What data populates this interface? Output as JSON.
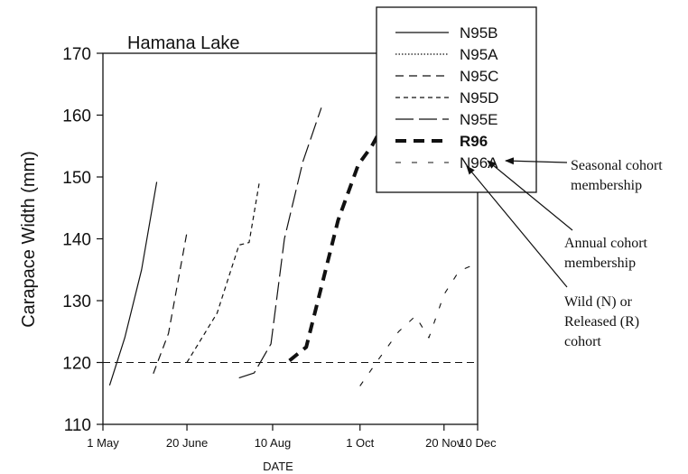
{
  "chart_data": {
    "type": "line",
    "title": "Hamana Lake",
    "xlabel": "DATE",
    "ylabel": "Carapace Width (mm)",
    "ylim": [
      110,
      170
    ],
    "yticks": [
      110,
      120,
      130,
      140,
      150,
      160,
      170
    ],
    "xlim": [
      "1995-05-01",
      "1995-12-10"
    ],
    "xticks": [
      {
        "label": "1 May",
        "date": "1995-05-01"
      },
      {
        "label": "20 June",
        "date": "1995-06-20"
      },
      {
        "label": "10 Aug",
        "date": "1995-08-10"
      },
      {
        "label": "1 Oct",
        "date": "1995-10-01"
      },
      {
        "label": "20 Nov",
        "date": "1995-11-20"
      },
      {
        "label": "10 Dec",
        "date": "1995-12-10"
      }
    ],
    "reference_line": {
      "y": 120,
      "style": "dash"
    },
    "legend_position": "top-right",
    "series": [
      {
        "name": "N95B",
        "style": "solid",
        "points": [
          [
            "1995-05-05",
            116.3
          ],
          [
            "1995-05-14",
            124
          ],
          [
            "1995-05-24",
            135
          ],
          [
            "1995-06-02",
            149.2
          ]
        ]
      },
      {
        "name": "N95A",
        "style": "dotted",
        "points": []
      },
      {
        "name": "N95C",
        "style": "dash",
        "points": [
          [
            "1995-05-31",
            118.2
          ],
          [
            "1995-06-09",
            124.7
          ],
          [
            "1995-06-20",
            141
          ]
        ]
      },
      {
        "name": "N95D",
        "style": "short-dash",
        "points": [
          [
            "1995-06-20",
            120
          ],
          [
            "1995-07-08",
            128
          ],
          [
            "1995-07-21",
            139
          ],
          [
            "1995-07-27",
            139.4
          ],
          [
            "1995-08-02",
            149
          ]
        ]
      },
      {
        "name": "N95E",
        "style": "long-dash",
        "points": [
          [
            "1995-07-21",
            117.5
          ],
          [
            "1995-07-30",
            118.3
          ],
          [
            "1995-08-09",
            123
          ],
          [
            "1995-08-17",
            140
          ],
          [
            "1995-08-28",
            152.5
          ],
          [
            "1995-09-08",
            161.2
          ]
        ]
      },
      {
        "name": "R96",
        "style": "thick-dash",
        "points": [
          [
            "1995-08-20",
            120.3
          ],
          [
            "1995-08-30",
            122.5
          ],
          [
            "1995-09-18",
            143
          ],
          [
            "1995-09-30",
            152
          ],
          [
            "1995-10-08",
            155
          ],
          [
            "1995-10-19",
            160.4
          ]
        ]
      },
      {
        "name": "N96A",
        "style": "sparse-dash",
        "points": [
          [
            "1995-10-01",
            116.2
          ],
          [
            "1995-10-12",
            120.5
          ],
          [
            "1995-10-24",
            125
          ],
          [
            "1995-11-03",
            127.5
          ],
          [
            "1995-11-11",
            124
          ],
          [
            "1995-11-20",
            131
          ],
          [
            "1995-11-29",
            134.8
          ],
          [
            "1995-12-06",
            135.6
          ]
        ]
      }
    ],
    "annotations": [
      {
        "lines": [
          "Seasonal cohort",
          "membership"
        ]
      },
      {
        "lines": [
          "Annual cohort",
          "membership"
        ]
      },
      {
        "lines": [
          "Wild (N) or",
          "Released (R)",
          "cohort"
        ]
      }
    ]
  }
}
